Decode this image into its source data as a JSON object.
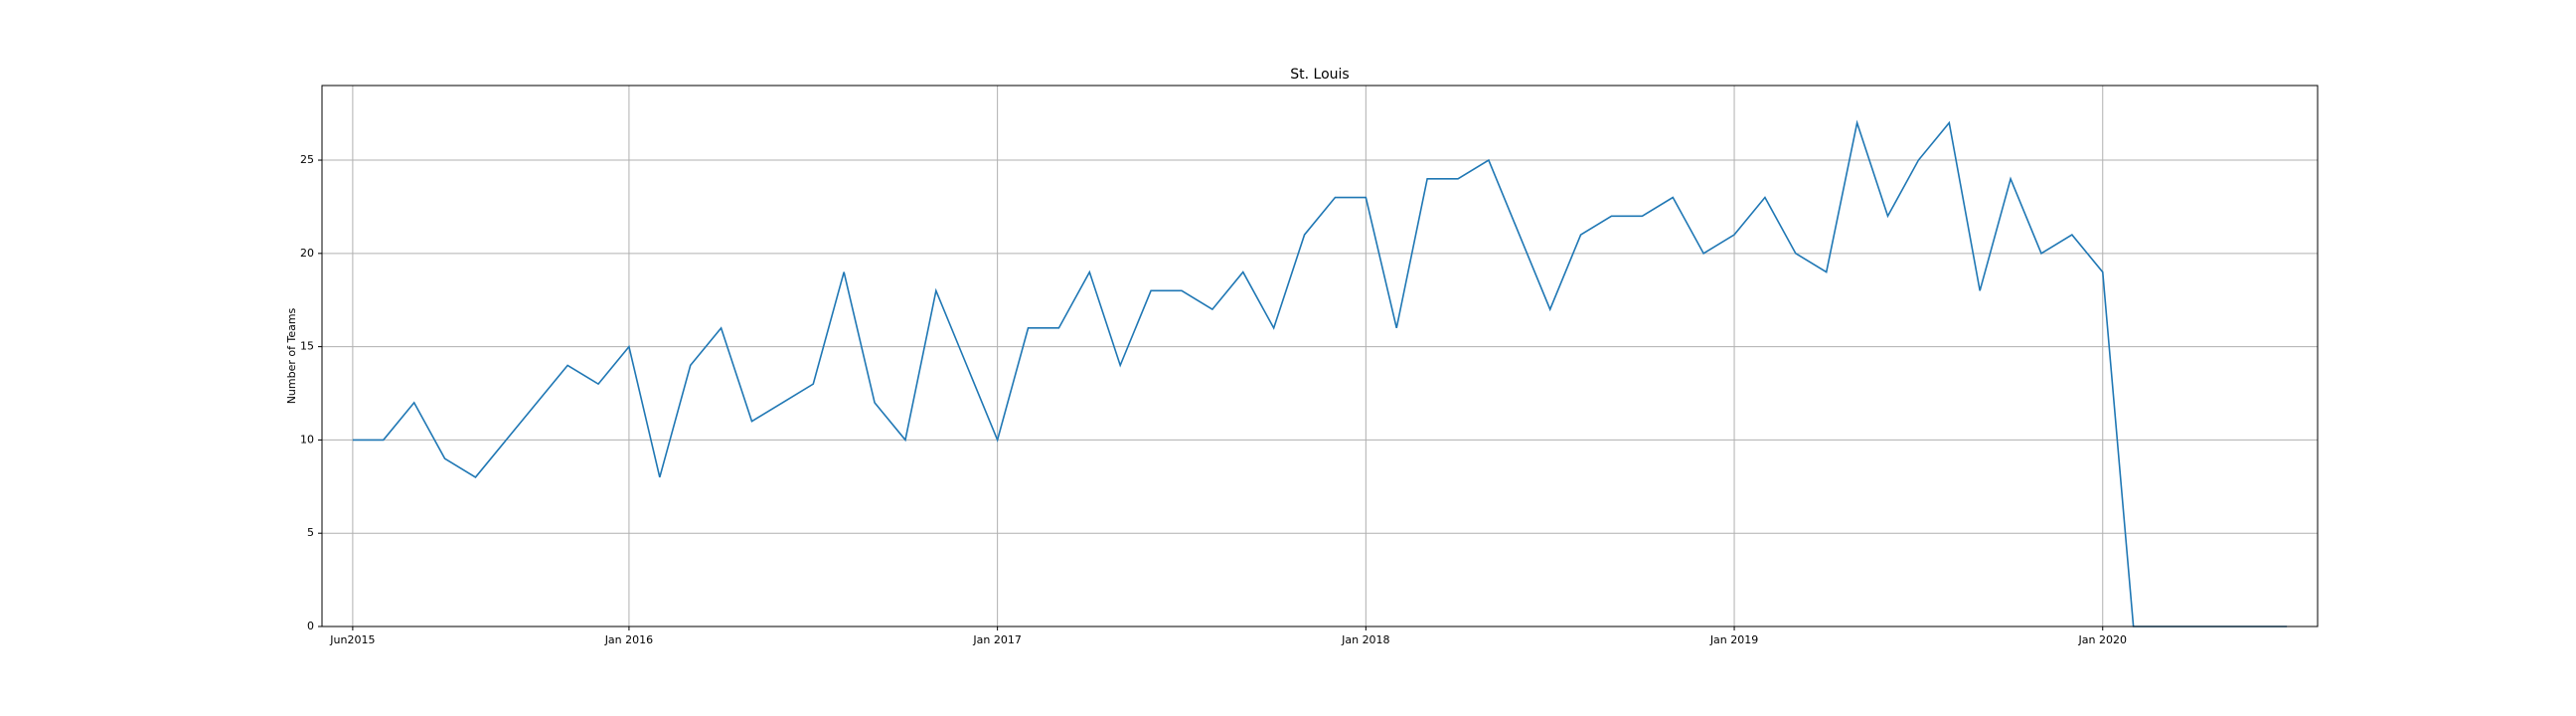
{
  "chart_data": {
    "type": "line",
    "title": "St. Louis",
    "ylabel": "Number of Teams",
    "x": [
      0,
      1,
      2,
      3,
      4,
      5,
      6,
      7,
      8,
      9,
      10,
      11,
      12,
      13,
      14,
      15,
      16,
      17,
      18,
      19,
      20,
      21,
      22,
      23,
      24,
      25,
      26,
      27,
      28,
      29,
      30,
      31,
      32,
      33,
      34,
      35,
      36,
      37,
      38,
      39,
      40,
      41,
      42,
      43,
      44,
      45,
      46,
      47,
      48,
      49,
      50,
      51,
      52,
      53,
      54,
      55,
      56,
      57,
      58,
      59,
      60,
      61,
      62,
      63
    ],
    "series": [
      {
        "name": "St. Louis",
        "color": "#1f77b4",
        "values": [
          10,
          10,
          12,
          9,
          8,
          10,
          12,
          14,
          13,
          15,
          8,
          14,
          16,
          11,
          12,
          13,
          19,
          12,
          10,
          18,
          14,
          10,
          16,
          16,
          19,
          14,
          18,
          18,
          17,
          19,
          16,
          21,
          23,
          23,
          16,
          24,
          24,
          25,
          21,
          17,
          21,
          22,
          22,
          23,
          20,
          21,
          23,
          20,
          19,
          27,
          22,
          25,
          27,
          18,
          24,
          20,
          21,
          19,
          0,
          0,
          0,
          0,
          0,
          0
        ]
      }
    ],
    "xlim": [
      -1,
      64
    ],
    "xticks": [
      {
        "value": 0,
        "label": "Jun2015"
      },
      {
        "value": 9,
        "label": "Jan 2016"
      },
      {
        "value": 21,
        "label": "Jan 2017"
      },
      {
        "value": 33,
        "label": "Jan 2018"
      },
      {
        "value": 45,
        "label": "Jan 2019"
      },
      {
        "value": 57,
        "label": "Jan 2020"
      }
    ],
    "ylim": [
      0,
      29
    ],
    "yticks": [
      0,
      5,
      10,
      15,
      20,
      25
    ],
    "grid": true
  }
}
